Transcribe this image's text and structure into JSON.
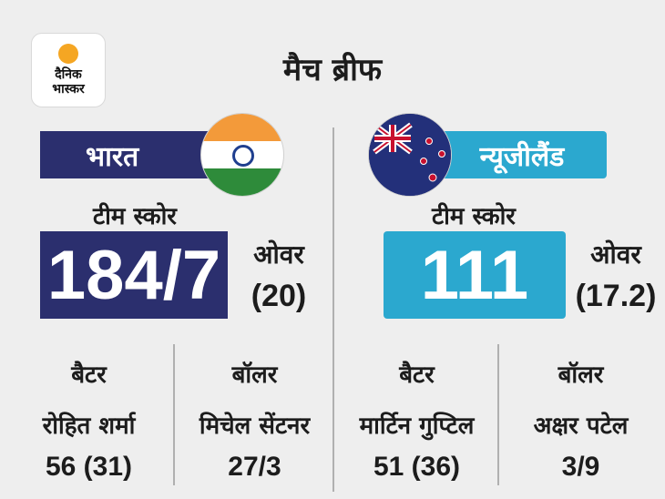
{
  "logo": {
    "line1": "दैनिक",
    "line2": "भास्कर"
  },
  "title": "मैच ब्रीफ",
  "teams": [
    {
      "name": "भारत",
      "score_label": "टीम स्कोर",
      "score": "184/7",
      "overs_label": "ओवर",
      "overs": "(20)",
      "batter_label": "बैटर",
      "batter_name": "रोहित शर्मा",
      "batter_figure": "56 (31)",
      "bowler_label": "बॉलर",
      "bowler_name": "मिचेल सेंटनर",
      "bowler_figure": "27/3"
    },
    {
      "name": "न्यूजीलैंड",
      "score_label": "टीम स्कोर",
      "score": "111",
      "overs_label": "ओवर",
      "overs": "(17.2)",
      "batter_label": "बैटर",
      "batter_name": "मार्टिन गुप्टिल",
      "batter_figure": "51 (36)",
      "bowler_label": "बॉलर",
      "bowler_name": "अक्षर पटेल",
      "bowler_figure": "3/9"
    }
  ],
  "colors": {
    "india": "#2b2f6e",
    "nz": "#2ba8cf",
    "background": "#eeeeee"
  },
  "icons": {
    "logo": "dainik-bhaskar-logo",
    "india_flag": "india-flag-icon",
    "nz_flag": "new-zealand-flag-icon"
  }
}
